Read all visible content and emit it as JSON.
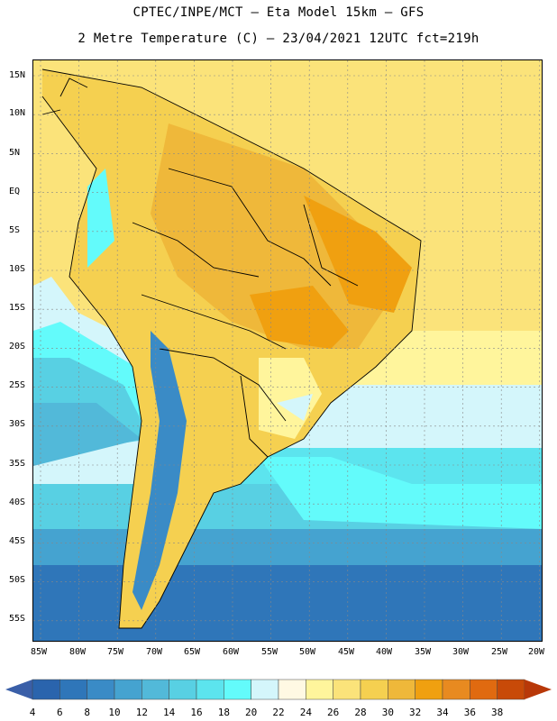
{
  "title": {
    "line1": "CPTEC/INPE/MCT –  Eta Model 15km – GFS",
    "line2": "2 Metre Temperature (C) – 23/04/2021 12UTC fct=219h"
  },
  "map": {
    "latitude_labels": [
      "15N",
      "10N",
      "5N",
      "EQ",
      "5S",
      "10S",
      "15S",
      "20S",
      "25S",
      "30S",
      "35S",
      "40S",
      "45S",
      "50S",
      "55S"
    ],
    "longitude_labels": [
      "85W",
      "80W",
      "75W",
      "70W",
      "65W",
      "60W",
      "55W",
      "50W",
      "45W",
      "40W",
      "35W",
      "30W",
      "25W",
      "20W"
    ]
  },
  "colorbar": {
    "unit": "C",
    "labels": [
      "4",
      "6",
      "8",
      "10",
      "12",
      "14",
      "16",
      "18",
      "20",
      "22",
      "24",
      "26",
      "28",
      "30",
      "32",
      "34",
      "36",
      "38"
    ],
    "colors": [
      "#2a64ad",
      "#2f76b9",
      "#3a8bc6",
      "#45a3d0",
      "#52b9d9",
      "#58d0e3",
      "#5ce4ee",
      "#63fbfb",
      "#d4f6fb",
      "#fff9e3",
      "#fff59c",
      "#fbe37a",
      "#f5d050",
      "#efb83a",
      "#f0a010",
      "#e88a20",
      "#e06a10",
      "#c84a08"
    ],
    "low_color": "#3a5fa8",
    "high_color": "#b83808"
  }
}
